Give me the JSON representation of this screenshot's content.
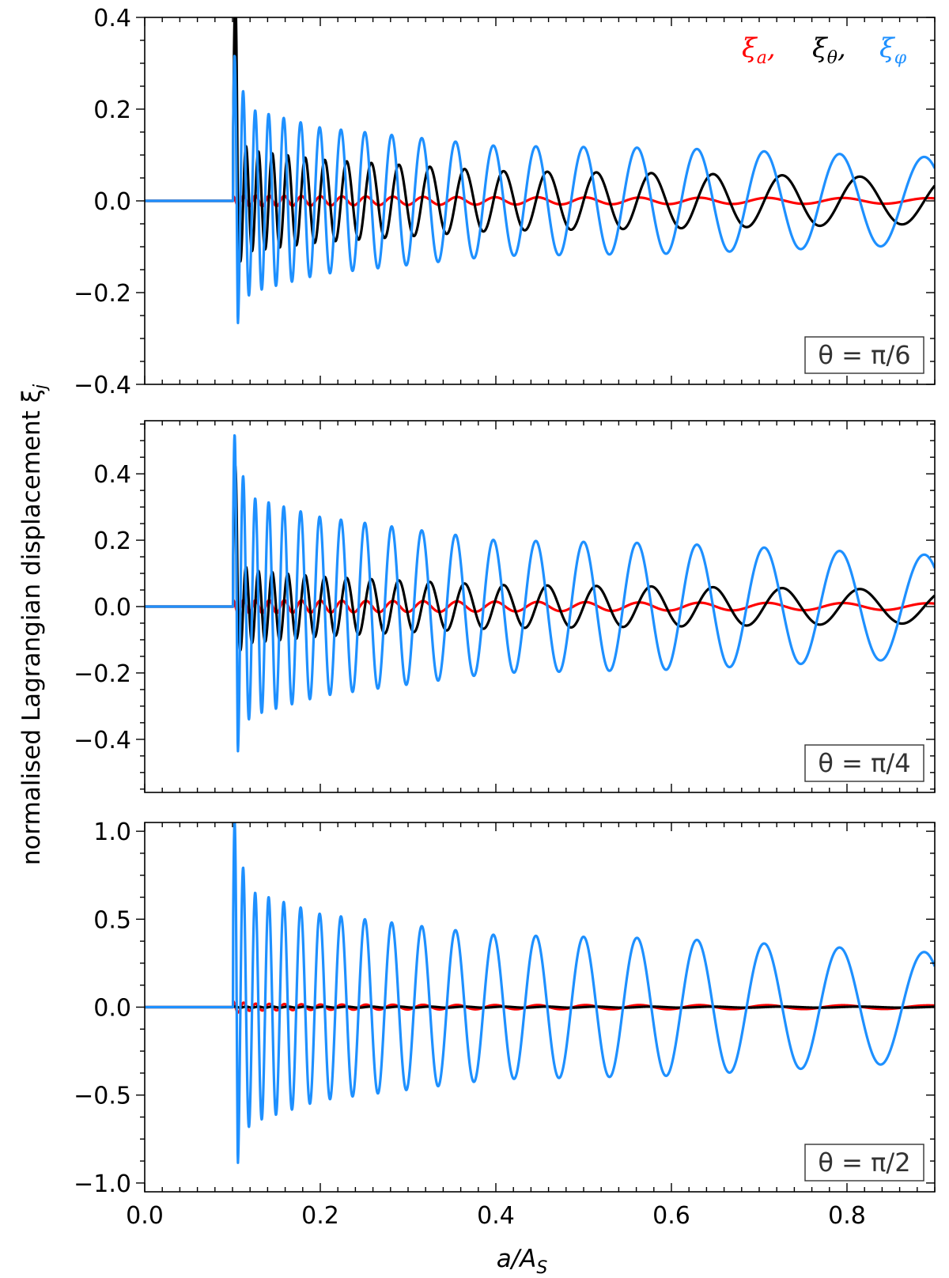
{
  "figure": {
    "ylabel": "normalised Lagrangian displacement ξ",
    "ylabel_sub": "j",
    "xlabel": "a/A",
    "xlabel_sub": "S"
  },
  "legend": [
    {
      "symbol": "ξ",
      "sub": "a",
      "sep": ",",
      "color": "#ff0000"
    },
    {
      "symbol": "ξ",
      "sub": "θ",
      "sep": ",",
      "color": "#000000"
    },
    {
      "symbol": "ξ",
      "sub": "φ",
      "sep": "",
      "color": "#1e90ff"
    }
  ],
  "chart_data": [
    {
      "type": "line",
      "panel_label": "θ = π/6",
      "xlim": [
        0.0,
        0.9
      ],
      "ylim": [
        -0.4,
        0.4
      ],
      "xticks": [
        0.0,
        0.2,
        0.4,
        0.6,
        0.8
      ],
      "yticks": [
        -0.4,
        -0.2,
        0.0,
        0.2,
        0.4
      ],
      "ytick_labels": [
        "−0.4",
        "−0.2",
        "0.0",
        "0.2",
        "0.4"
      ],
      "onset": 0.1,
      "series": [
        {
          "name": "ξ_a",
          "color": "#ff0000",
          "envelope": {
            "x": [
              0.1,
              0.12,
              0.2,
              0.4,
              0.6,
              0.9
            ],
            "amp": [
              0.01,
              0.012,
              0.01,
              0.008,
              0.007,
              0.006
            ]
          },
          "phase": 1.3
        },
        {
          "name": "ξ_θ",
          "color": "#000000",
          "peak": 0.37,
          "envelope": {
            "x": [
              0.1,
              0.12,
              0.2,
              0.4,
              0.6,
              0.9
            ],
            "amp": [
              0.15,
              0.11,
              0.09,
              0.065,
              0.06,
              0.05
            ]
          },
          "phase": 0.0
        },
        {
          "name": "ξ_φ",
          "color": "#1e90ff",
          "peak": 0.3,
          "envelope": {
            "x": [
              0.1,
              0.12,
              0.2,
              0.4,
              0.6,
              0.9
            ],
            "amp": [
              0.3,
              0.2,
              0.16,
              0.12,
              0.115,
              0.095
            ]
          },
          "phase": 1.57
        }
      ]
    },
    {
      "type": "line",
      "panel_label": "θ = π/4",
      "xlim": [
        0.0,
        0.9
      ],
      "ylim": [
        -0.56,
        0.56
      ],
      "xticks": [
        0.0,
        0.2,
        0.4,
        0.6,
        0.8
      ],
      "yticks": [
        -0.4,
        -0.2,
        0.0,
        0.2,
        0.4
      ],
      "ytick_labels": [
        "−0.4",
        "−0.2",
        "0.0",
        "0.2",
        "0.4"
      ],
      "onset": 0.1,
      "series": [
        {
          "name": "ξ_a",
          "color": "#ff0000",
          "envelope": {
            "x": [
              0.1,
              0.12,
              0.2,
              0.4,
              0.6,
              0.9
            ],
            "amp": [
              0.02,
              0.02,
              0.018,
              0.015,
              0.012,
              0.01
            ]
          },
          "phase": 1.3
        },
        {
          "name": "ξ_θ",
          "color": "#000000",
          "peak": 0.35,
          "envelope": {
            "x": [
              0.1,
              0.12,
              0.2,
              0.4,
              0.6,
              0.9
            ],
            "amp": [
              0.15,
              0.11,
              0.09,
              0.065,
              0.06,
              0.05
            ]
          },
          "phase": 0.0
        },
        {
          "name": "ξ_φ",
          "color": "#1e90ff",
          "peak": 0.49,
          "envelope": {
            "x": [
              0.1,
              0.12,
              0.2,
              0.4,
              0.6,
              0.9
            ],
            "amp": [
              0.49,
              0.33,
              0.27,
              0.2,
              0.19,
              0.155
            ]
          },
          "phase": 1.57
        }
      ]
    },
    {
      "type": "line",
      "panel_label": "θ = π/2",
      "xlim": [
        0.0,
        0.9
      ],
      "ylim": [
        -1.05,
        1.05
      ],
      "xticks": [
        0.0,
        0.2,
        0.4,
        0.6,
        0.8
      ],
      "yticks": [
        -1.0,
        -0.5,
        0.0,
        0.5,
        1.0
      ],
      "ytick_labels": [
        "−1.0",
        "−0.5",
        "0.0",
        "0.5",
        "1.0"
      ],
      "onset": 0.1,
      "series": [
        {
          "name": "ξ_a",
          "color": "#ff0000",
          "envelope": {
            "x": [
              0.1,
              0.12,
              0.2,
              0.4,
              0.6,
              0.9
            ],
            "amp": [
              0.035,
              0.02,
              0.015,
              0.012,
              0.012,
              0.01
            ]
          },
          "phase": 1.3
        },
        {
          "name": "ξ_θ",
          "color": "#000000",
          "envelope": {
            "x": [
              0.1,
              0.9
            ],
            "amp": [
              0.003,
              0.003
            ]
          },
          "phase": 0.0
        },
        {
          "name": "ξ_φ",
          "color": "#1e90ff",
          "peak": 1.0,
          "envelope": {
            "x": [
              0.1,
              0.12,
              0.2,
              0.4,
              0.6,
              0.9
            ],
            "amp": [
              1.0,
              0.66,
              0.53,
              0.41,
              0.39,
              0.31
            ]
          },
          "phase": 1.57
        }
      ]
    }
  ]
}
